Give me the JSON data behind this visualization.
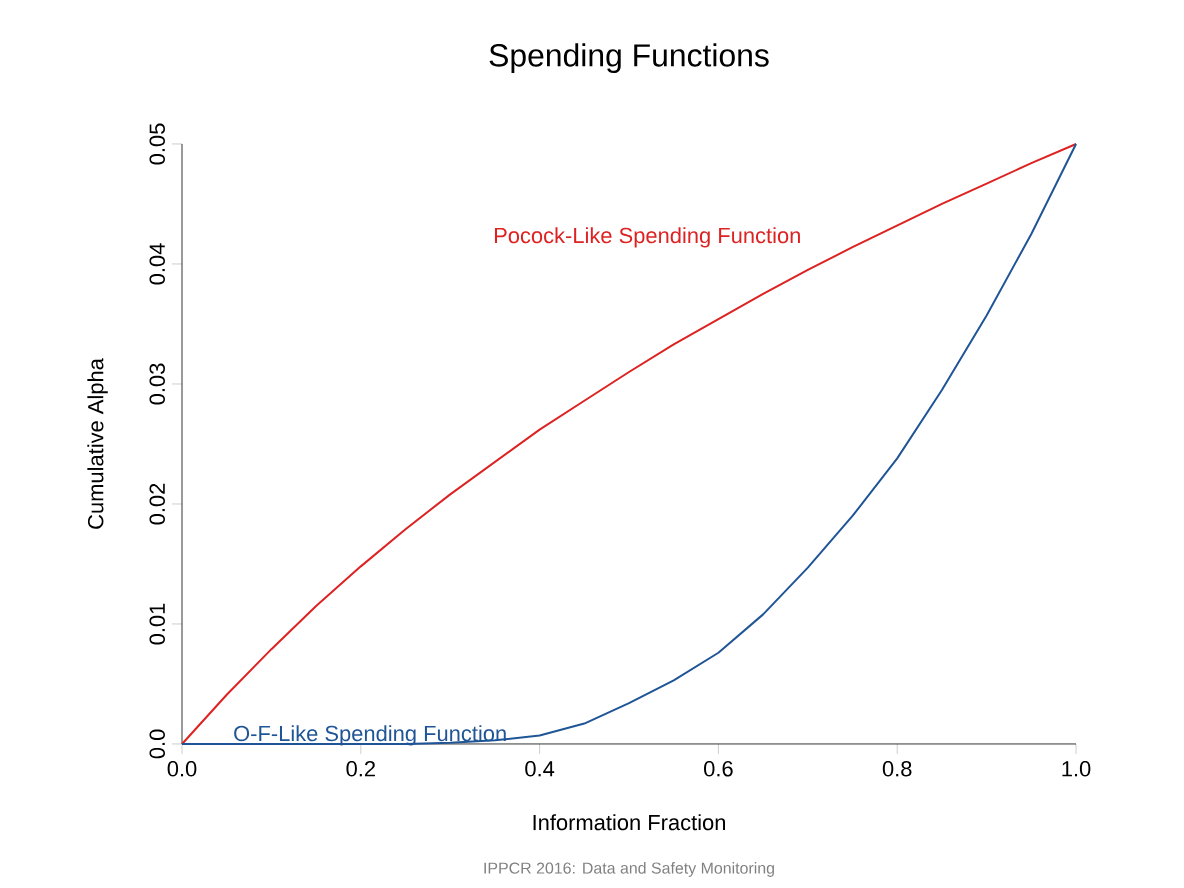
{
  "chart_data": {
    "type": "line",
    "title": "Spending Functions",
    "xlabel": "Information Fraction",
    "ylabel": "Cumulative Alpha",
    "x": [
      0,
      0.05,
      0.1,
      0.15,
      0.2,
      0.25,
      0.3,
      0.35,
      0.4,
      0.45,
      0.5,
      0.55,
      0.6,
      0.65,
      0.7,
      0.75,
      0.8,
      0.85,
      0.9,
      0.95,
      1
    ],
    "series": [
      {
        "name": "Pocock-Like Spending Function",
        "color": "#dd2222",
        "values": [
          0,
          0.0041,
          0.0079,
          0.0115,
          0.0148,
          0.0179,
          0.0208,
          0.0235,
          0.0262,
          0.0286,
          0.031,
          0.0333,
          0.0354,
          0.0375,
          0.0395,
          0.0414,
          0.0432,
          0.045,
          0.0467,
          0.0484,
          0.05
        ]
      },
      {
        "name": "O-F-Like Spending Function",
        "color": "#1f5596",
        "values": [
          0,
          0,
          0,
          0,
          0,
          0,
          0.0001,
          0.0003,
          0.0007,
          0.0017,
          0.0034,
          0.0053,
          0.0076,
          0.0108,
          0.0147,
          0.019,
          0.0238,
          0.0295,
          0.0357,
          0.0425,
          0.05
        ]
      }
    ],
    "xlim": [
      0,
      1
    ],
    "ylim": [
      0,
      0.05
    ],
    "xticks": [
      {
        "value": 0,
        "label": "0.0"
      },
      0.2,
      0.4,
      0.6,
      0.8,
      {
        "value": 1,
        "label": "1.0"
      }
    ],
    "yticks": [
      {
        "value": 0,
        "label": "0.0"
      },
      0.01,
      0.02,
      0.03,
      0.04,
      0.05
    ],
    "grid": false,
    "legend": false,
    "marker": "none",
    "line_style": "solid",
    "annotations": [
      "IPPCR 2016: Data and Safety Monitoring"
    ]
  }
}
